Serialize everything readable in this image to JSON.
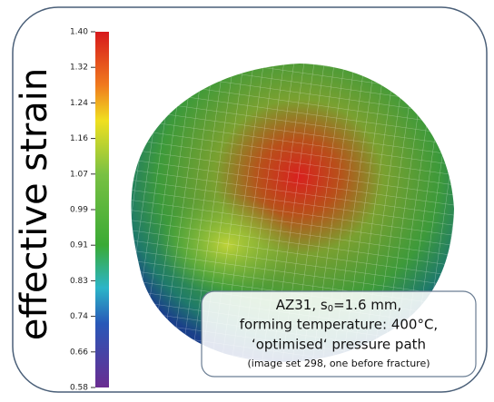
{
  "axis_label": "effective strain",
  "colorbar": {
    "ticks": [
      "1.40",
      "1.32",
      "1.24",
      "1.16",
      "1.07",
      "0.99",
      "0.91",
      "0.83",
      "0.74",
      "0.66",
      "0.58"
    ]
  },
  "annotation": {
    "line1_prefix": "AZ31, s",
    "line1_sub": "0",
    "line1_suffix": "=1.6 mm,",
    "line2": "forming temperature: 400°C,",
    "line3": "‘optimised‘ pressure path",
    "line4": "(image set 298, one before fracture)"
  }
}
